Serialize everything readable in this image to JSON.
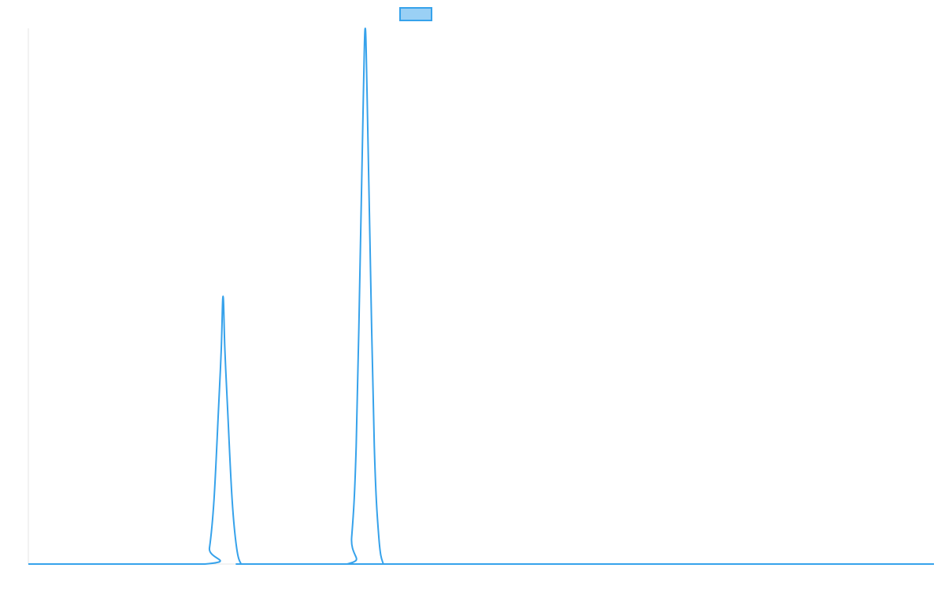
{
  "chart_data": {
    "type": "line",
    "title": "",
    "xlabel": "",
    "ylabel": "",
    "xlim": [
      0,
      1000
    ],
    "ylim": [
      0,
      1
    ],
    "grid": false,
    "legend": {
      "placement": "top-center",
      "show_label": false
    },
    "series": [
      {
        "color": "#36a2eb",
        "fill_color": "#9ad0f5",
        "x": [
          0,
          195,
          200,
          205,
          210,
          213,
          215,
          217,
          220,
          225,
          230,
          235,
          240,
          352,
          357,
          362,
          367,
          370,
          372,
          374,
          377,
          382,
          387,
          392,
          397,
          1000
        ],
        "y": [
          0,
          0,
          0.03,
          0.12,
          0.29,
          0.4,
          0.5,
          0.4,
          0.29,
          0.12,
          0.03,
          0,
          0,
          0,
          0.05,
          0.22,
          0.62,
          0.88,
          1.0,
          0.88,
          0.62,
          0.22,
          0.05,
          0,
          0,
          0
        ]
      }
    ]
  }
}
